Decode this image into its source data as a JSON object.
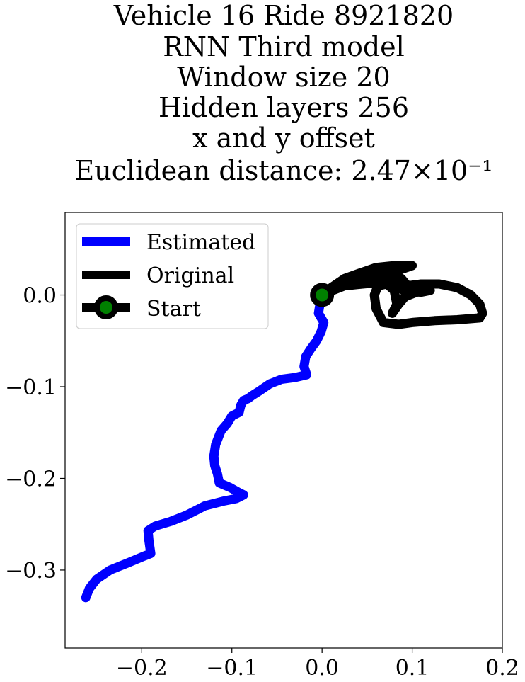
{
  "chart_data": {
    "type": "line",
    "title_lines": [
      "Vehicle 16 Ride 8921820",
      "RNN Third model",
      "Window size 20",
      "Hidden layers 256",
      "x and y offset",
      "Euclidean distance: 2.47×10⁻¹"
    ],
    "xlim": [
      -0.285,
      0.2
    ],
    "ylim": [
      -0.385,
      0.09
    ],
    "xticks": [
      -0.2,
      -0.1,
      0.0,
      0.1,
      0.2
    ],
    "xtick_labels": [
      "−0.2",
      "−0.1",
      "0.0",
      "0.1",
      "0.2"
    ],
    "yticks": [
      0.0,
      -0.1,
      -0.2,
      -0.3
    ],
    "ytick_labels": [
      "0.0",
      "−0.1",
      "−0.2",
      "−0.3"
    ],
    "legend": {
      "position": "upper left",
      "entries": [
        "Estimated",
        "Original",
        "Start"
      ]
    },
    "series": [
      {
        "name": "Estimated",
        "color": "#0000ff",
        "points": [
          [
            0.0,
            0.0
          ],
          [
            -0.002,
            -0.008
          ],
          [
            -0.004,
            -0.02
          ],
          [
            0.002,
            -0.03
          ],
          [
            -0.001,
            -0.04
          ],
          [
            -0.006,
            -0.05
          ],
          [
            -0.012,
            -0.058
          ],
          [
            -0.018,
            -0.067
          ],
          [
            -0.02,
            -0.078
          ],
          [
            -0.017,
            -0.087
          ],
          [
            -0.03,
            -0.09
          ],
          [
            -0.045,
            -0.092
          ],
          [
            -0.058,
            -0.097
          ],
          [
            -0.07,
            -0.105
          ],
          [
            -0.078,
            -0.11
          ],
          [
            -0.082,
            -0.113
          ],
          [
            -0.087,
            -0.115
          ],
          [
            -0.09,
            -0.12
          ],
          [
            -0.092,
            -0.128
          ],
          [
            -0.1,
            -0.132
          ],
          [
            -0.105,
            -0.14
          ],
          [
            -0.112,
            -0.148
          ],
          [
            -0.118,
            -0.163
          ],
          [
            -0.12,
            -0.176
          ],
          [
            -0.119,
            -0.186
          ],
          [
            -0.116,
            -0.195
          ],
          [
            -0.114,
            -0.205
          ],
          [
            -0.102,
            -0.21
          ],
          [
            -0.093,
            -0.215
          ],
          [
            -0.087,
            -0.218
          ],
          [
            -0.095,
            -0.222
          ],
          [
            -0.11,
            -0.225
          ],
          [
            -0.13,
            -0.23
          ],
          [
            -0.15,
            -0.24
          ],
          [
            -0.168,
            -0.247
          ],
          [
            -0.185,
            -0.252
          ],
          [
            -0.193,
            -0.257
          ],
          [
            -0.192,
            -0.268
          ],
          [
            -0.19,
            -0.282
          ],
          [
            -0.198,
            -0.285
          ],
          [
            -0.215,
            -0.292
          ],
          [
            -0.235,
            -0.3
          ],
          [
            -0.25,
            -0.31
          ],
          [
            -0.258,
            -0.32
          ],
          [
            -0.262,
            -0.33
          ]
        ]
      },
      {
        "name": "Original",
        "color": "#000000",
        "points": [
          [
            0.0,
            0.0
          ],
          [
            0.01,
            0.008
          ],
          [
            0.025,
            0.018
          ],
          [
            0.045,
            0.025
          ],
          [
            0.06,
            0.03
          ],
          [
            0.08,
            0.032
          ],
          [
            0.1,
            0.032
          ],
          [
            0.088,
            0.028
          ],
          [
            0.065,
            0.026
          ],
          [
            0.045,
            0.02
          ],
          [
            0.03,
            0.014
          ],
          [
            0.018,
            0.01
          ],
          [
            0.025,
            0.013
          ],
          [
            0.04,
            0.018
          ],
          [
            0.06,
            0.022
          ],
          [
            0.075,
            0.022
          ],
          [
            0.088,
            0.018
          ],
          [
            0.095,
            0.01
          ],
          [
            0.11,
            0.012
          ],
          [
            0.13,
            0.012
          ],
          [
            0.15,
            0.008
          ],
          [
            0.165,
            0.0
          ],
          [
            0.175,
            -0.01
          ],
          [
            0.178,
            -0.02
          ],
          [
            0.175,
            -0.025
          ],
          [
            0.15,
            -0.027
          ],
          [
            0.125,
            -0.028
          ],
          [
            0.1,
            -0.03
          ],
          [
            0.085,
            -0.032
          ],
          [
            0.068,
            -0.03
          ],
          [
            0.06,
            -0.015
          ],
          [
            0.058,
            0.0
          ],
          [
            0.062,
            0.01
          ],
          [
            0.072,
            0.012
          ],
          [
            0.08,
            0.005
          ],
          [
            0.083,
            -0.01
          ],
          [
            0.078,
            -0.02
          ],
          [
            0.085,
            -0.01
          ],
          [
            0.092,
            -0.002
          ],
          [
            0.11,
            0.005
          ],
          [
            0.12,
            0.005
          ],
          [
            0.11,
            0.003
          ],
          [
            0.09,
            0.005
          ],
          [
            0.083,
            0.012
          ],
          [
            0.082,
            0.02
          ],
          [
            0.068,
            0.014
          ],
          [
            0.045,
            0.012
          ],
          [
            0.025,
            0.01
          ],
          [
            0.012,
            0.005
          ],
          [
            0.0,
            0.0
          ]
        ]
      }
    ],
    "start_point": {
      "name": "Start",
      "x": 0.0,
      "y": 0.0,
      "edge_color": "#000000",
      "face_color": "#008000"
    }
  }
}
